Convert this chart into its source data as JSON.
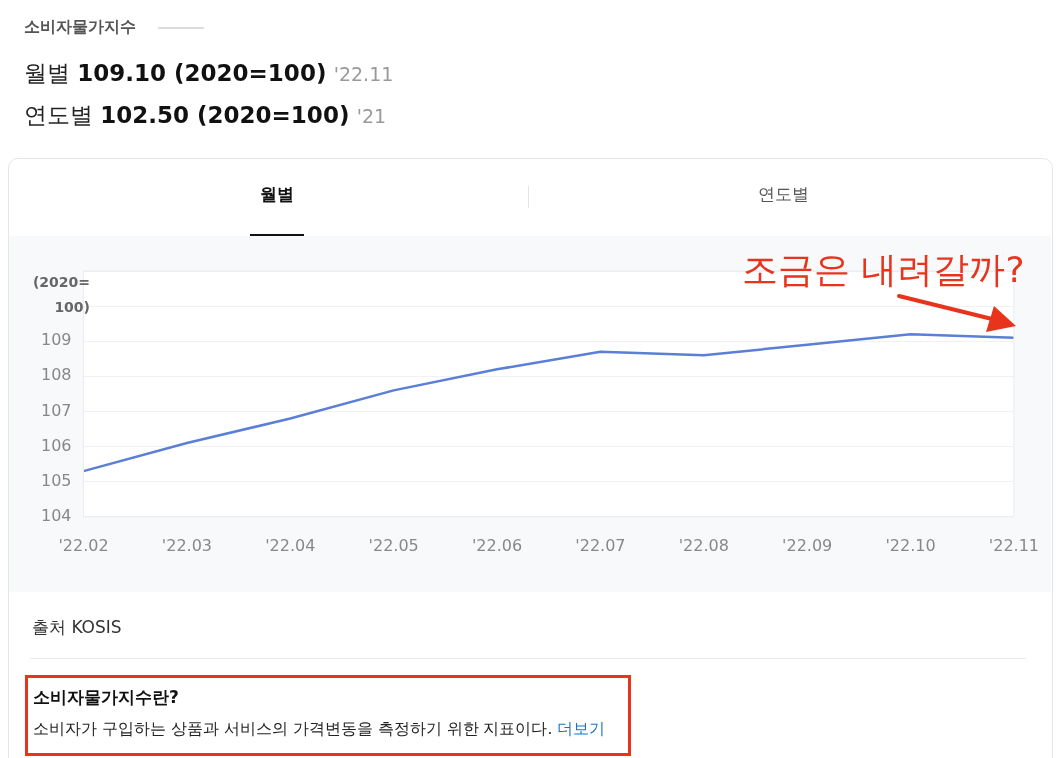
{
  "chart_data": {
    "type": "line",
    "title": "소비자물가지수",
    "subtitle": "월별 109.10 (2020=100) '22.11",
    "ylabel": "(2020=100)",
    "categories": [
      "'22.02",
      "'22.03",
      "'22.04",
      "'22.05",
      "'22.06",
      "'22.07",
      "'22.08",
      "'22.09",
      "'22.10",
      "'22.11"
    ],
    "series": [
      {
        "color": "#5b7fd6",
        "values": [
          105.3,
          106.1,
          106.8,
          107.6,
          108.2,
          108.7,
          108.6,
          108.9,
          109.2,
          109.1
        ]
      }
    ],
    "ylim": [
      104,
      111
    ],
    "yticks": [
      104,
      105,
      106,
      107,
      108,
      109,
      {
        "value": 110,
        "label": null
      },
      {
        "value": 111,
        "label": null
      }
    ],
    "grid": "y",
    "legend": false,
    "marker": "none",
    "line_style": "solid",
    "annotations": [
      "연도별 102.50 (2020=100) '21",
      "월별",
      "연도별",
      "조금은 내려갈까?",
      "출처 KOSIS",
      "소비자물가지수란?",
      "소비자가 구입하는 상품과 서비스의 가격변동을 측정하기 위한 지표이다.",
      "더보기"
    ]
  }
}
